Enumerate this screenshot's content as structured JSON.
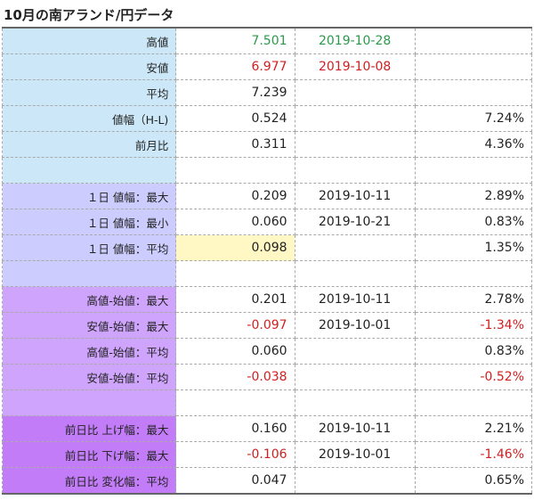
{
  "title": "10月の南アランド/円データ",
  "colors": {
    "green": "#2a9a4a",
    "red": "#d02020"
  },
  "rows": [
    {
      "group": 1,
      "label": "高値",
      "value": "7.501",
      "date": "2019-10-28",
      "pct": "",
      "vc": "green",
      "dc": "green"
    },
    {
      "group": 1,
      "label": "安値",
      "value": "6.977",
      "date": "2019-10-08",
      "pct": "",
      "vc": "red",
      "dc": "red"
    },
    {
      "group": 1,
      "label": "平均",
      "value": "7.239",
      "date": "",
      "pct": ""
    },
    {
      "group": 1,
      "label": "値幅（H-L)",
      "value": "0.524",
      "date": "",
      "pct": "7.24%"
    },
    {
      "group": 1,
      "label": "前月比",
      "value": "0.311",
      "date": "",
      "pct": "4.36%"
    },
    {
      "group": 1,
      "label": "",
      "value": "",
      "date": "",
      "pct": ""
    },
    {
      "group": 2,
      "label": "１日 値幅：最大",
      "value": "0.209",
      "date": "2019-10-11",
      "pct": "2.89%"
    },
    {
      "group": 2,
      "label": "１日 値幅：最小",
      "value": "0.060",
      "date": "2019-10-21",
      "pct": "0.83%"
    },
    {
      "group": 2,
      "label": "１日 値幅：平均",
      "value": "0.098",
      "date": "",
      "pct": "1.35%",
      "hl": true
    },
    {
      "group": 2,
      "label": "",
      "value": "",
      "date": "",
      "pct": ""
    },
    {
      "group": 3,
      "label": "高値-始値：最大",
      "value": "0.201",
      "date": "2019-10-11",
      "pct": "2.78%"
    },
    {
      "group": 3,
      "label": "安値-始値：最大",
      "value": "-0.097",
      "date": "2019-10-01",
      "pct": "-1.34%",
      "vc": "red",
      "pc": "red"
    },
    {
      "group": 3,
      "label": "高値-始値：平均",
      "value": "0.060",
      "date": "",
      "pct": "0.83%"
    },
    {
      "group": 3,
      "label": "安値-始値：平均",
      "value": "-0.038",
      "date": "",
      "pct": "-0.52%",
      "vc": "red",
      "pc": "red"
    },
    {
      "group": 3,
      "label": "",
      "value": "",
      "date": "",
      "pct": ""
    },
    {
      "group": 4,
      "label": "前日比 上げ幅：最大",
      "value": "0.160",
      "date": "2019-10-11",
      "pct": "2.21%"
    },
    {
      "group": 4,
      "label": "前日比 下げ幅：最大",
      "value": "-0.106",
      "date": "2019-10-01",
      "pct": "-1.46%",
      "vc": "red",
      "pc": "red"
    },
    {
      "group": 4,
      "label": "前日比 変化幅：平均",
      "value": "0.047",
      "date": "",
      "pct": "0.65%"
    }
  ]
}
